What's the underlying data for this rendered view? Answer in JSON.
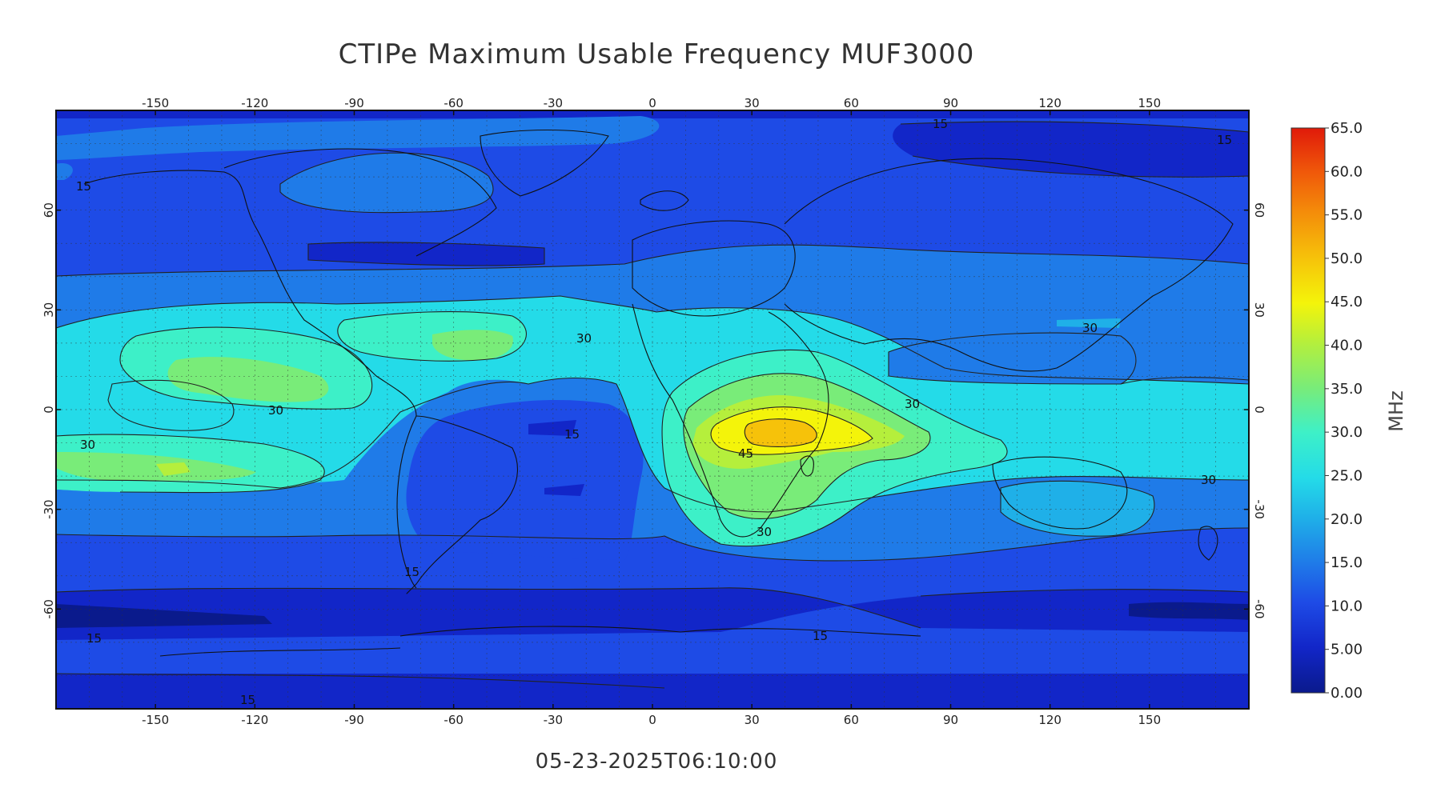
{
  "title": "CTIPe Maximum Usable Frequency MUF3000",
  "timestamp": "05-23-2025T06:10:00",
  "map": {
    "lon_ticks": [
      "-150",
      "-120",
      "-90",
      "-60",
      "-30",
      "0",
      "30",
      "60",
      "90",
      "120",
      "150"
    ],
    "lat_ticks": [
      "60",
      "30",
      "0",
      "-30",
      "-60"
    ],
    "lon_range": [
      -180,
      180
    ],
    "lat_range": [
      -90,
      90
    ]
  },
  "colorbar": {
    "unit": "MHz",
    "labels": [
      "0.00",
      "5.00",
      "10.0",
      "15.0",
      "20.0",
      "25.0",
      "30.0",
      "35.0",
      "40.0",
      "45.0",
      "50.0",
      "55.0",
      "60.0",
      "65.0"
    ],
    "colors": [
      "#0a1a8c",
      "#1226c8",
      "#1e4be6",
      "#1f7be8",
      "#1fb0e8",
      "#24dbe8",
      "#3df0c8",
      "#79ec79",
      "#b5ef3c",
      "#f4f40a",
      "#f6c20a",
      "#f48d0a",
      "#f05a0a",
      "#e01a0a"
    ]
  },
  "contour_labels": [
    "15",
    "15",
    "15",
    "15",
    "15",
    "15",
    "15",
    "15",
    "30",
    "30",
    "30",
    "30",
    "30",
    "30",
    "30",
    "45"
  ]
}
